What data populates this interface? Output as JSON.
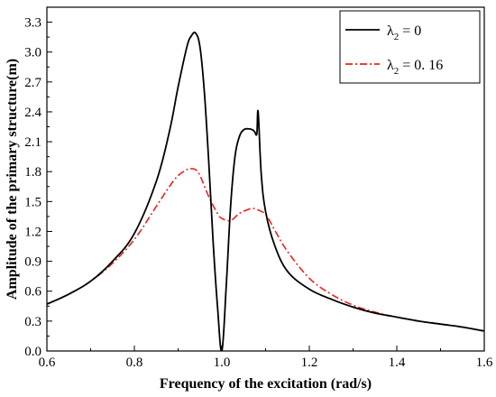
{
  "chart_data": {
    "type": "line",
    "xlabel": "Frequency of the excitation (rad/s)",
    "ylabel": "Amplitude of the primary structure(m)",
    "xlim": [
      0.6,
      1.6
    ],
    "ylim": [
      0.0,
      3.45
    ],
    "xticks": [
      0.6,
      0.8,
      1.0,
      1.2,
      1.4,
      1.6
    ],
    "xtick_labels": [
      "0.6",
      "0.8",
      "1.0",
      "1.2",
      "1.4",
      "1.6"
    ],
    "yticks": [
      0.0,
      0.3,
      0.6,
      0.9,
      1.2,
      1.5,
      1.8,
      2.1,
      2.4,
      2.7,
      3.0,
      3.3
    ],
    "ytick_labels": [
      "0.0",
      "0.3",
      "0.6",
      "0.9",
      "1.2",
      "1.5",
      "1.8",
      "2.1",
      "2.4",
      "2.7",
      "3.0",
      "3.3"
    ],
    "legend_position": "top-right",
    "series": [
      {
        "name": "λ2 = 0",
        "legend_main": "λ",
        "legend_sub": "2",
        "legend_value": " = 0",
        "color": "#000000",
        "style": "solid",
        "x": [
          0.6,
          0.65,
          0.7,
          0.75,
          0.8,
          0.85,
          0.88,
          0.9,
          0.92,
          0.93,
          0.94,
          0.95,
          0.96,
          0.97,
          0.98,
          0.99,
          1.0,
          1.01,
          1.02,
          1.03,
          1.04,
          1.05,
          1.06,
          1.07,
          1.075,
          1.08,
          1.083,
          1.09,
          1.1,
          1.12,
          1.15,
          1.2,
          1.25,
          1.3,
          1.35,
          1.4,
          1.45,
          1.5,
          1.55,
          1.6
        ],
        "y": [
          0.47,
          0.57,
          0.7,
          0.9,
          1.18,
          1.7,
          2.2,
          2.65,
          3.05,
          3.16,
          3.19,
          3.05,
          2.6,
          1.9,
          1.1,
          0.45,
          0.0,
          0.65,
          1.45,
          1.95,
          2.15,
          2.22,
          2.23,
          2.22,
          2.2,
          2.18,
          2.4,
          1.78,
          1.4,
          1.07,
          0.8,
          0.62,
          0.52,
          0.44,
          0.38,
          0.34,
          0.3,
          0.27,
          0.24,
          0.2
        ]
      },
      {
        "name": "λ2 = 0.16",
        "legend_main": "λ",
        "legend_sub": "2",
        "legend_value": " = 0. 16",
        "color": "#e8231f",
        "style": "dash-dot",
        "x": [
          0.6,
          0.65,
          0.7,
          0.75,
          0.8,
          0.85,
          0.88,
          0.9,
          0.92,
          0.93,
          0.94,
          0.95,
          0.97,
          0.99,
          1.0,
          1.02,
          1.04,
          1.06,
          1.07,
          1.08,
          1.1,
          1.12,
          1.15,
          1.2,
          1.25,
          1.3,
          1.35,
          1.4,
          1.45,
          1.5,
          1.55,
          1.6
        ],
        "y": [
          0.47,
          0.57,
          0.7,
          0.88,
          1.12,
          1.45,
          1.65,
          1.76,
          1.82,
          1.83,
          1.82,
          1.76,
          1.55,
          1.38,
          1.33,
          1.31,
          1.38,
          1.42,
          1.43,
          1.42,
          1.37,
          1.22,
          1.0,
          0.73,
          0.57,
          0.46,
          0.39,
          0.34,
          0.3,
          0.27,
          0.24,
          0.2
        ]
      }
    ]
  }
}
